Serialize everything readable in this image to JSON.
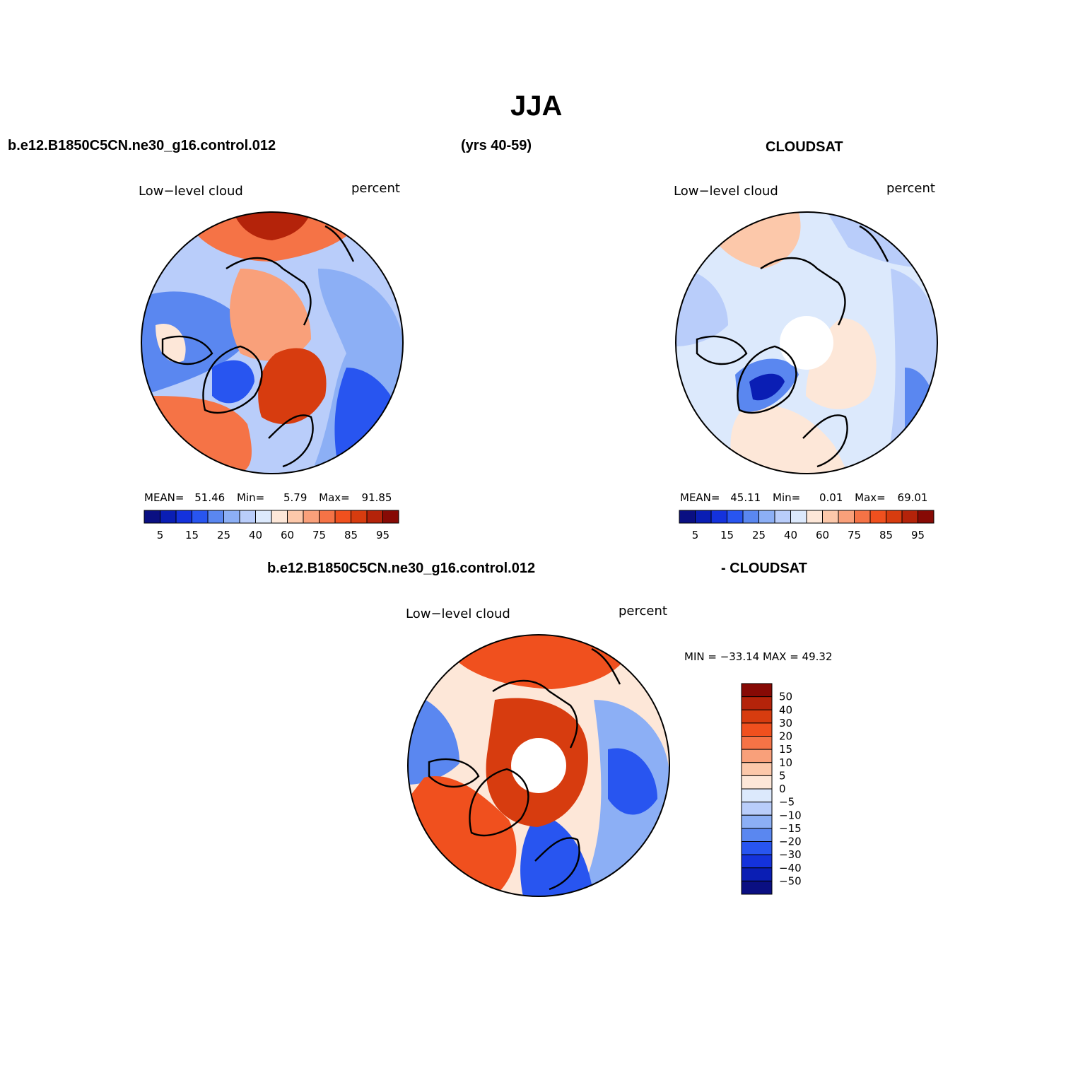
{
  "header": {
    "title": "JJA",
    "case_name": "b.e12.B1850C5CN.ne30_g16.control.012",
    "years": "(yrs 40-59)",
    "obs_name": "CLOUDSAT",
    "diff_case": "b.e12.B1850C5CN.ne30_g16.control.012",
    "diff_obs": "- CLOUDSAT"
  },
  "panels": {
    "model": {
      "variable": "Low−level cloud",
      "units": "percent",
      "mean_label": "MEAN=",
      "mean": "51.46",
      "min_label": "Min=",
      "min": "5.79",
      "max_label": "Max=",
      "max": "91.85"
    },
    "obs": {
      "variable": "Low−level cloud",
      "units": "percent",
      "mean_label": "MEAN=",
      "mean": "45.11",
      "min_label": "Min=",
      "min": "0.01",
      "max_label": "Max=",
      "max": "69.01"
    },
    "diff": {
      "variable": "Low−level cloud",
      "units": "percent",
      "minmax": "MIN = −33.14  MAX =   49.32"
    }
  },
  "colorbar_horizontal": {
    "colors": [
      "#0a0f82",
      "#0a1eb4",
      "#1432dc",
      "#2855f0",
      "#5a87f0",
      "#8caff5",
      "#b9cdfa",
      "#dce9fc",
      "#fde7d8",
      "#fcc8aa",
      "#f9a07a",
      "#f57346",
      "#f0501e",
      "#d73c0f",
      "#b4230a",
      "#870a05"
    ],
    "labels": [
      "5",
      "15",
      "25",
      "40",
      "60",
      "75",
      "85",
      "95"
    ]
  },
  "colorbar_vertical": {
    "colors": [
      "#870a05",
      "#b4230a",
      "#d73c0f",
      "#f0501e",
      "#f57346",
      "#f9a07a",
      "#fcc8aa",
      "#fde7d8",
      "#dce9fc",
      "#b9cdfa",
      "#8caff5",
      "#5a87f0",
      "#2855f0",
      "#1432dc",
      "#0a1eb4",
      "#0a0f82"
    ],
    "labels": [
      "50",
      "40",
      "30",
      "20",
      "15",
      "10",
      "5",
      "0",
      "−5",
      "−10",
      "−15",
      "−20",
      "−30",
      "−40",
      "−50"
    ]
  },
  "map_colors": {
    "model": {
      "base": "#b9cdfa"
    },
    "obs": {
      "base": "#dce9fc"
    },
    "diff": {
      "base": "#fde7d8"
    }
  }
}
